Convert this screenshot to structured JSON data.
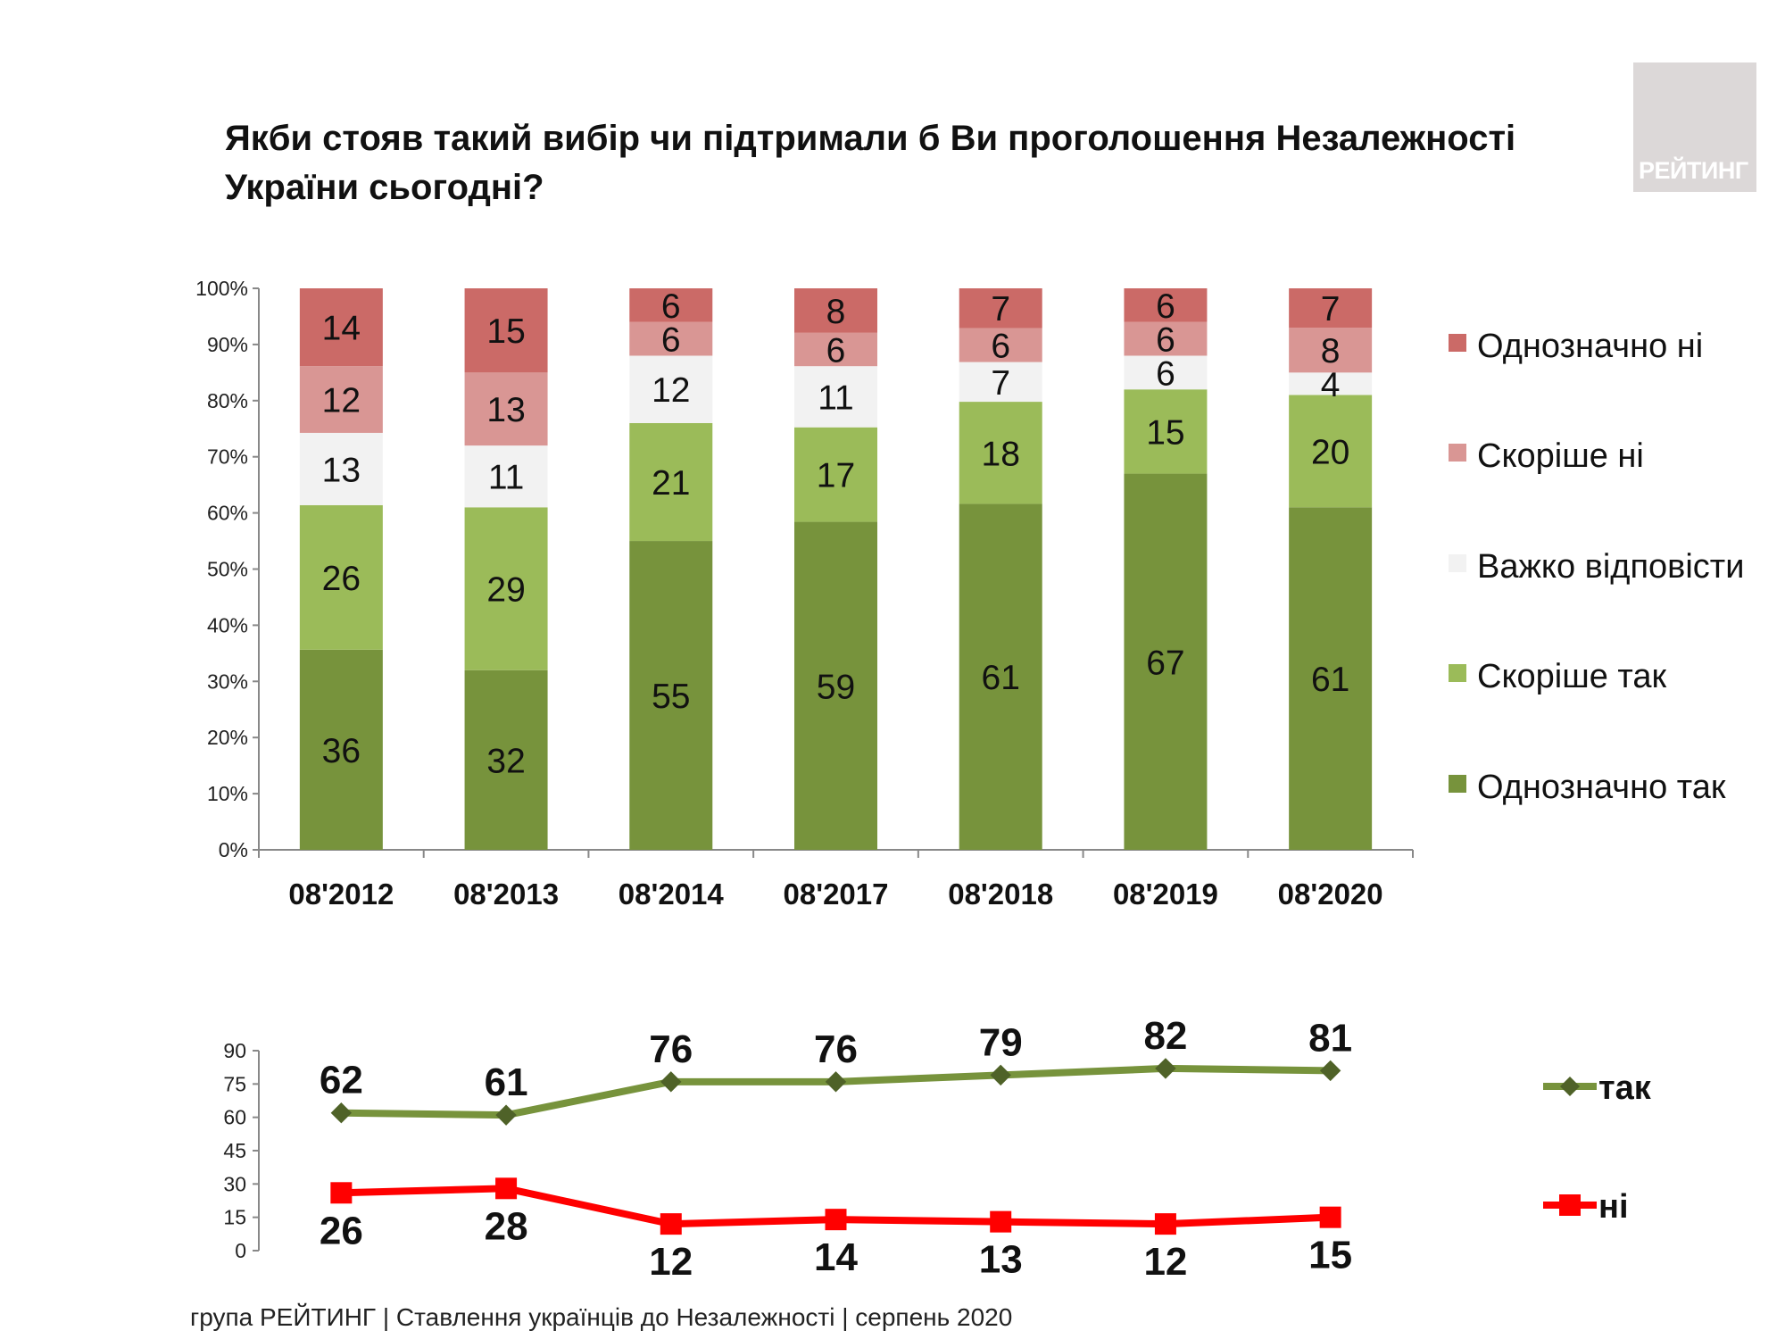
{
  "title": "Якби стояв такий вибір чи підтримали б Ви проголошення Незалежності України сьогодні?",
  "logo_text": "РЕЙТИНГ",
  "footer": "група РЕЙТИНГ | Ставлення українців до Незалежності | серпень  2020",
  "chart_data": [
    {
      "type": "bar",
      "stacked": "100%",
      "categories": [
        "08'2012",
        "08'2013",
        "08'2014",
        "08'2017",
        "08'2018",
        "08'2019",
        "08'2020"
      ],
      "yticks": [
        "0%",
        "10%",
        "20%",
        "30%",
        "40%",
        "50%",
        "60%",
        "70%",
        "80%",
        "90%",
        "100%"
      ],
      "ylim": [
        0,
        100
      ],
      "legend_position": "right",
      "series": [
        {
          "name": "Однозначно так",
          "color": "#77933c",
          "values": [
            36,
            32,
            55,
            59,
            61,
            67,
            61
          ]
        },
        {
          "name": "Скоріше так",
          "color": "#9bbb59",
          "values": [
            26,
            29,
            21,
            17,
            18,
            15,
            20
          ]
        },
        {
          "name": "Важко відповісти",
          "color": "#f2f2f2",
          "values": [
            13,
            11,
            12,
            11,
            7,
            6,
            4
          ]
        },
        {
          "name": "Скоріше ні",
          "color": "#d99694",
          "values": [
            12,
            13,
            6,
            6,
            6,
            6,
            8
          ]
        },
        {
          "name": "Однозначно ні",
          "color": "#cb6a67",
          "values": [
            14,
            15,
            6,
            8,
            7,
            6,
            7
          ]
        }
      ]
    },
    {
      "type": "line",
      "categories": [
        "08'2012",
        "08'2013",
        "08'2014",
        "08'2017",
        "08'2018",
        "08'2019",
        "08'2020"
      ],
      "yticks": [
        "0",
        "15",
        "30",
        "45",
        "60",
        "75",
        "90"
      ],
      "ylim": [
        0,
        90
      ],
      "legend_position": "right",
      "series": [
        {
          "name": "так",
          "color": "#77933c",
          "marker": "diamond",
          "values": [
            62,
            61,
            76,
            76,
            79,
            82,
            81
          ]
        },
        {
          "name": "ні",
          "color": "#ff0000",
          "marker": "square",
          "values": [
            26,
            28,
            12,
            14,
            13,
            12,
            15
          ]
        }
      ]
    }
  ]
}
